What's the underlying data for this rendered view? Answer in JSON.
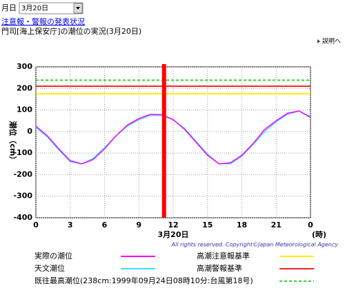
{
  "header": {
    "month_label": "月日",
    "date_select": "3月20日",
    "link": "注意報・警報の発表状況",
    "subtitle": "門司[海上保安庁]の潮位の実況(3月20日)",
    "help": "説明へ"
  },
  "chart_data": {
    "type": "line",
    "ylabel": "潮位（cm）",
    "xlabel": "(時)",
    "date_label": "3月20日",
    "copyright": "All rights reserved. Copyright©Japan Meteorological Agency",
    "x": [
      0,
      1,
      2,
      3,
      4,
      5,
      6,
      7,
      8,
      9,
      10,
      11,
      12,
      13,
      14,
      15,
      16,
      17,
      18,
      19,
      20,
      21,
      22,
      23,
      24
    ],
    "xlim": [
      0,
      24
    ],
    "xticks": [
      0,
      3,
      6,
      9,
      12,
      15,
      18,
      21,
      {
        "value": 24,
        "label": "0"
      }
    ],
    "ylim": [
      -400,
      300
    ],
    "yticks": [
      300,
      200,
      100,
      0,
      -100,
      -200,
      -300,
      -400
    ],
    "grid": true,
    "series": [
      {
        "name": "実際の潮位",
        "color": "#ff00ff",
        "values": [
          25,
          -20,
          -80,
          -135,
          -150,
          -130,
          -80,
          -20,
          30,
          60,
          80,
          78,
          55,
          10,
          -50,
          -110,
          -150,
          -145,
          -110,
          -55,
          10,
          50,
          85,
          95,
          65
        ]
      },
      {
        "name": "天文潮位",
        "color": "#33ddff",
        "values": [
          20,
          -25,
          -85,
          -140,
          -150,
          -125,
          -75,
          -20,
          25,
          55,
          75,
          75,
          55,
          15,
          -45,
          -105,
          -150,
          -150,
          -115,
          -60,
          0,
          45,
          80,
          95,
          70
        ]
      }
    ],
    "reference_lines": [
      {
        "name": "高潮注意報基準",
        "value": 175,
        "color": "#ffee00",
        "dashed": false
      },
      {
        "name": "高潮警報基準",
        "value": 210,
        "color": "#ee2222",
        "dashed": false
      },
      {
        "name": "既往最高潮位(238cm:1999年09月24日08時10分:台風第18号)",
        "value": 238,
        "color": "#22dd22",
        "dashed": true
      }
    ],
    "current_time": 11.2,
    "current_color": "#ff0000"
  }
}
